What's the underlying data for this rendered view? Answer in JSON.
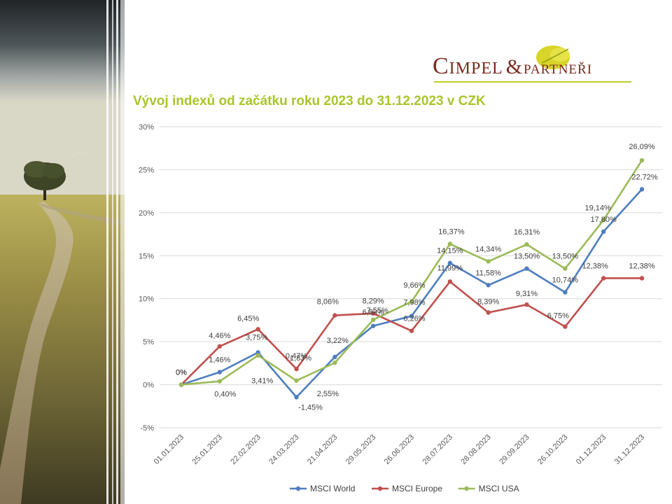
{
  "logo": {
    "word": "Cimpel",
    "amp": "&",
    "sub": "partneři"
  },
  "chart_data": {
    "type": "line",
    "title": "Vývoj indexů od začátku roku 2023 do 31.12.2023 v CZK",
    "xlabel": "",
    "ylabel": "",
    "categories": [
      "01.01.2023",
      "25.01.2023",
      "22.02.2023",
      "24.03.2023",
      "21.04.2023",
      "29.05.2023",
      "26.06.2023",
      "28.07.2023",
      "28.08.2023",
      "29.09.2023",
      "26.10.2023",
      "01.12.2023",
      "31.12.2023"
    ],
    "ylim": [
      -5,
      30
    ],
    "yticks": [
      -5,
      0,
      5,
      10,
      15,
      20,
      25,
      30
    ],
    "ytick_labels": [
      "-5%",
      "0%",
      "5%",
      "10%",
      "15%",
      "20%",
      "25%",
      "30%"
    ],
    "grid": true,
    "legend": "bottom",
    "series": [
      {
        "name": "MSCI World",
        "color": "#4e7ebf",
        "values": [
          0,
          1.46,
          3.75,
          -1.45,
          3.22,
          6.83,
          7.98,
          14.15,
          11.58,
          13.5,
          10.74,
          17.8,
          22.72
        ],
        "labels": [
          "0%",
          "1,46%",
          "3,75%",
          "-1,45%",
          "3,22%",
          "6,83%",
          "7,98%",
          "14,15%",
          "11,58%",
          "13,50%",
          "10,74%",
          "17,80%",
          "22,72%"
        ]
      },
      {
        "name": "MSCI Europe",
        "color": "#c0504d",
        "values": [
          0,
          4.46,
          6.45,
          1.83,
          8.06,
          8.29,
          6.26,
          11.99,
          8.39,
          9.31,
          6.75,
          12.38,
          12.38
        ],
        "labels": [
          "0%",
          "4,46%",
          "6,45%",
          "1,83%",
          "8,06%",
          "8,29%",
          "6,26%",
          "11,99%",
          "8,39%",
          "9,31%",
          "6,75%",
          "12,38%",
          "12,38%"
        ]
      },
      {
        "name": "MSCI USA",
        "color": "#9bbb59",
        "values": [
          0,
          0.4,
          3.41,
          0.47,
          2.55,
          7.55,
          9.66,
          16.37,
          14.34,
          16.31,
          13.5,
          19.14,
          26.09
        ],
        "labels": [
          "0%",
          "0,40%",
          "3,41%",
          "0,47%",
          "2,55%",
          "7,55%",
          "9,66%",
          "16,37%",
          "14,34%",
          "16,31%",
          "13,50%",
          "19,14%",
          "26,09%"
        ]
      }
    ]
  }
}
